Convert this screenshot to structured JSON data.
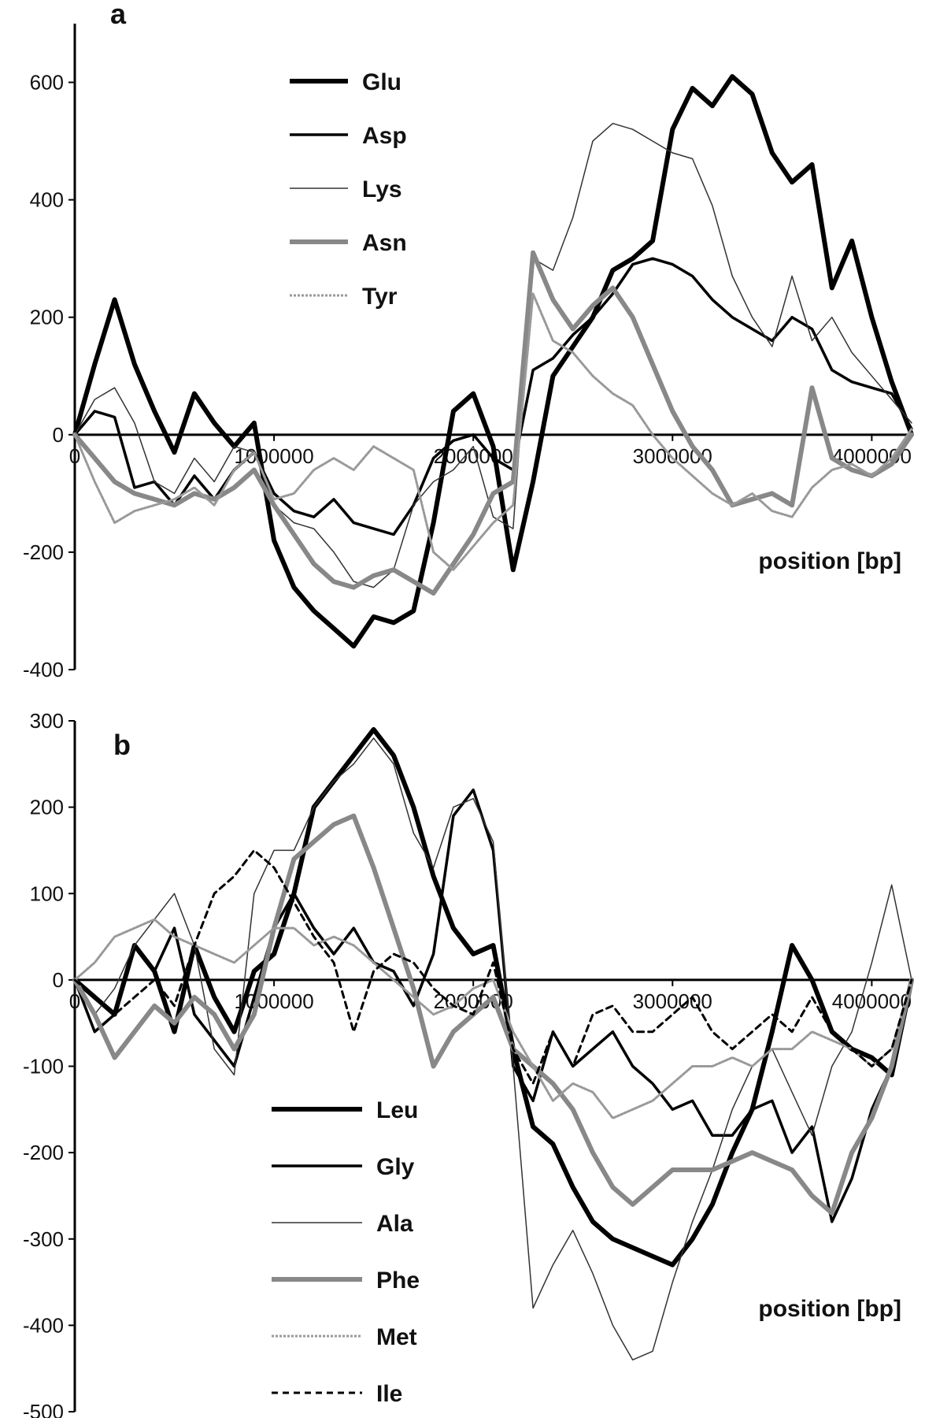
{
  "chart_data": [
    {
      "panel_label": "a",
      "type": "line",
      "xlabel": "position [bp]",
      "ylabel": "",
      "xlim": [
        0,
        4200000
      ],
      "ylim": [
        -400,
        700
      ],
      "x_ticks": [
        0,
        1000000,
        2000000,
        3000000,
        4000000
      ],
      "x_tick_labels": [
        "0",
        "1000000",
        "2000000",
        "3000000",
        "4000000"
      ],
      "y_ticks": [
        -400,
        -200,
        0,
        200,
        400,
        600
      ],
      "y_tick_labels": [
        "-400",
        "-200",
        "0",
        "200",
        "400",
        "600"
      ],
      "legend_position": "top-left",
      "x": [
        0,
        100000,
        200000,
        300000,
        400000,
        500000,
        600000,
        700000,
        800000,
        900000,
        1000000,
        1100000,
        1200000,
        1300000,
        1400000,
        1500000,
        1600000,
        1700000,
        1800000,
        1900000,
        2000000,
        2100000,
        2200000,
        2300000,
        2400000,
        2500000,
        2600000,
        2700000,
        2800000,
        2900000,
        3000000,
        3100000,
        3200000,
        3300000,
        3400000,
        3500000,
        3600000,
        3700000,
        3800000,
        3900000,
        4000000,
        4100000,
        4200000
      ],
      "series": [
        {
          "name": "Glu",
          "values": [
            0,
            120,
            230,
            120,
            40,
            -30,
            70,
            20,
            -20,
            20,
            -180,
            -260,
            -300,
            -330,
            -360,
            -310,
            -320,
            -300,
            -150,
            40,
            70,
            -20,
            -230,
            -80,
            100,
            150,
            200,
            280,
            300,
            330,
            520,
            590,
            560,
            610,
            580,
            480,
            430,
            460,
            250,
            330,
            200,
            90,
            0
          ],
          "color": "#000000",
          "width": 6,
          "dash": ""
        },
        {
          "name": "Asp",
          "values": [
            0,
            40,
            30,
            -90,
            -80,
            -120,
            -70,
            -110,
            -60,
            -30,
            -100,
            -130,
            -140,
            -110,
            -150,
            -160,
            -170,
            -120,
            -40,
            -10,
            0,
            -40,
            -60,
            110,
            130,
            170,
            200,
            240,
            290,
            300,
            290,
            270,
            230,
            200,
            180,
            160,
            200,
            180,
            110,
            90,
            80,
            70,
            10
          ],
          "color": "#000000",
          "width": 3.5,
          "dash": ""
        },
        {
          "name": "Lys",
          "values": [
            0,
            60,
            80,
            20,
            -80,
            -100,
            -40,
            -80,
            -20,
            -30,
            -120,
            -150,
            -160,
            -200,
            -250,
            -260,
            -230,
            -120,
            -80,
            -60,
            -20,
            -140,
            -160,
            300,
            280,
            370,
            500,
            530,
            520,
            500,
            480,
            470,
            390,
            270,
            200,
            150,
            270,
            160,
            200,
            140,
            100,
            60,
            20
          ],
          "color": "#333333",
          "width": 1.5,
          "dash": ""
        },
        {
          "name": "Asn",
          "values": [
            0,
            -40,
            -80,
            -100,
            -110,
            -120,
            -100,
            -110,
            -90,
            -60,
            -120,
            -170,
            -220,
            -250,
            -260,
            -240,
            -230,
            -250,
            -270,
            -220,
            -170,
            -100,
            -80,
            310,
            230,
            180,
            220,
            250,
            200,
            120,
            40,
            -20,
            -60,
            -120,
            -110,
            -100,
            -120,
            80,
            -40,
            -60,
            -70,
            -50,
            0
          ],
          "color": "#888888",
          "width": 6,
          "dash": ""
        },
        {
          "name": "Tyr",
          "values": [
            0,
            -80,
            -150,
            -130,
            -120,
            -110,
            -90,
            -120,
            -60,
            -30,
            -110,
            -100,
            -60,
            -40,
            -60,
            -20,
            -40,
            -60,
            -200,
            -230,
            -190,
            -150,
            -120,
            240,
            160,
            140,
            100,
            70,
            50,
            0,
            -40,
            -70,
            -100,
            -120,
            -100,
            -130,
            -140,
            -90,
            -60,
            -50,
            -70,
            -40,
            10
          ],
          "color": "#999999",
          "width": 3,
          "dash": "3,2"
        }
      ]
    },
    {
      "panel_label": "b",
      "type": "line",
      "xlabel": "position [bp]",
      "ylabel": "",
      "xlim": [
        0,
        4200000
      ],
      "ylim": [
        -500,
        300
      ],
      "x_ticks": [
        0,
        1000000,
        2000000,
        3000000,
        4000000
      ],
      "x_tick_labels": [
        "0",
        "1000000",
        "2000000",
        "3000000",
        "4000000"
      ],
      "y_ticks": [
        -500,
        -400,
        -300,
        -200,
        -100,
        0,
        100,
        200,
        300
      ],
      "y_tick_labels": [
        "-500",
        "-400",
        "-300",
        "-200",
        "-100",
        "0",
        "100",
        "200",
        "300"
      ],
      "legend_position": "bottom-left",
      "x": [
        0,
        100000,
        200000,
        300000,
        400000,
        500000,
        600000,
        700000,
        800000,
        900000,
        1000000,
        1100000,
        1200000,
        1300000,
        1400000,
        1500000,
        1600000,
        1700000,
        1800000,
        1900000,
        2000000,
        2100000,
        2200000,
        2300000,
        2400000,
        2500000,
        2600000,
        2700000,
        2800000,
        2900000,
        3000000,
        3100000,
        3200000,
        3300000,
        3400000,
        3500000,
        3600000,
        3700000,
        3800000,
        3900000,
        4000000,
        4100000,
        4200000
      ],
      "series": [
        {
          "name": "Leu",
          "values": [
            0,
            -20,
            -40,
            40,
            10,
            -60,
            40,
            -20,
            -60,
            10,
            30,
            100,
            200,
            230,
            260,
            290,
            260,
            200,
            120,
            60,
            30,
            40,
            -80,
            -170,
            -190,
            -240,
            -280,
            -300,
            -310,
            -320,
            -330,
            -300,
            -260,
            -200,
            -150,
            -60,
            40,
            0,
            -60,
            -80,
            -90,
            -110,
            0
          ],
          "color": "#000000",
          "width": 6,
          "dash": ""
        },
        {
          "name": "Gly",
          "values": [
            0,
            -60,
            -40,
            40,
            10,
            60,
            -40,
            -70,
            -100,
            -20,
            60,
            100,
            60,
            30,
            60,
            20,
            10,
            -30,
            30,
            190,
            220,
            150,
            -100,
            -140,
            -60,
            -100,
            -80,
            -60,
            -100,
            -120,
            -150,
            -140,
            -180,
            -180,
            -150,
            -140,
            -200,
            -170,
            -280,
            -230,
            -150,
            -100,
            0
          ],
          "color": "#000000",
          "width": 3.5,
          "dash": ""
        },
        {
          "name": "Ala",
          "values": [
            0,
            -40,
            -10,
            40,
            70,
            100,
            40,
            -80,
            -110,
            100,
            150,
            150,
            200,
            230,
            250,
            280,
            250,
            170,
            130,
            200,
            210,
            160,
            -100,
            -380,
            -330,
            -290,
            -340,
            -400,
            -440,
            -430,
            -350,
            -280,
            -220,
            -150,
            -100,
            -80,
            -130,
            -180,
            -100,
            -60,
            20,
            110,
            0
          ],
          "color": "#333333",
          "width": 1.5,
          "dash": ""
        },
        {
          "name": "Phe",
          "values": [
            0,
            -40,
            -90,
            -60,
            -30,
            -50,
            -20,
            -40,
            -80,
            -40,
            60,
            140,
            160,
            180,
            190,
            130,
            60,
            -10,
            -100,
            -60,
            -40,
            -20,
            -80,
            -100,
            -120,
            -150,
            -200,
            -240,
            -260,
            -240,
            -220,
            -220,
            -220,
            -210,
            -200,
            -210,
            -220,
            -250,
            -270,
            -200,
            -160,
            -100,
            0
          ],
          "color": "#888888",
          "width": 6,
          "dash": ""
        },
        {
          "name": "Met",
          "values": [
            0,
            20,
            50,
            60,
            70,
            50,
            40,
            30,
            20,
            40,
            60,
            60,
            40,
            50,
            40,
            20,
            0,
            -20,
            -40,
            -30,
            -10,
            0,
            -60,
            -100,
            -140,
            -120,
            -130,
            -160,
            -150,
            -140,
            -120,
            -100,
            -100,
            -90,
            -100,
            -80,
            -80,
            -60,
            -70,
            -80,
            -100,
            -80,
            0
          ],
          "color": "#999999",
          "width": 3,
          "dash": "3,2"
        },
        {
          "name": "Ile",
          "values": [
            0,
            -20,
            -40,
            -20,
            0,
            -30,
            40,
            100,
            120,
            150,
            130,
            90,
            50,
            20,
            -60,
            10,
            30,
            20,
            -10,
            -30,
            -40,
            20,
            -80,
            -120,
            -60,
            -100,
            -40,
            -30,
            -60,
            -60,
            -40,
            -20,
            -60,
            -80,
            -60,
            -40,
            -60,
            -20,
            -60,
            -80,
            -100,
            -80,
            0
          ],
          "color": "#000000",
          "width": 3,
          "dash": "8,6"
        }
      ]
    }
  ]
}
